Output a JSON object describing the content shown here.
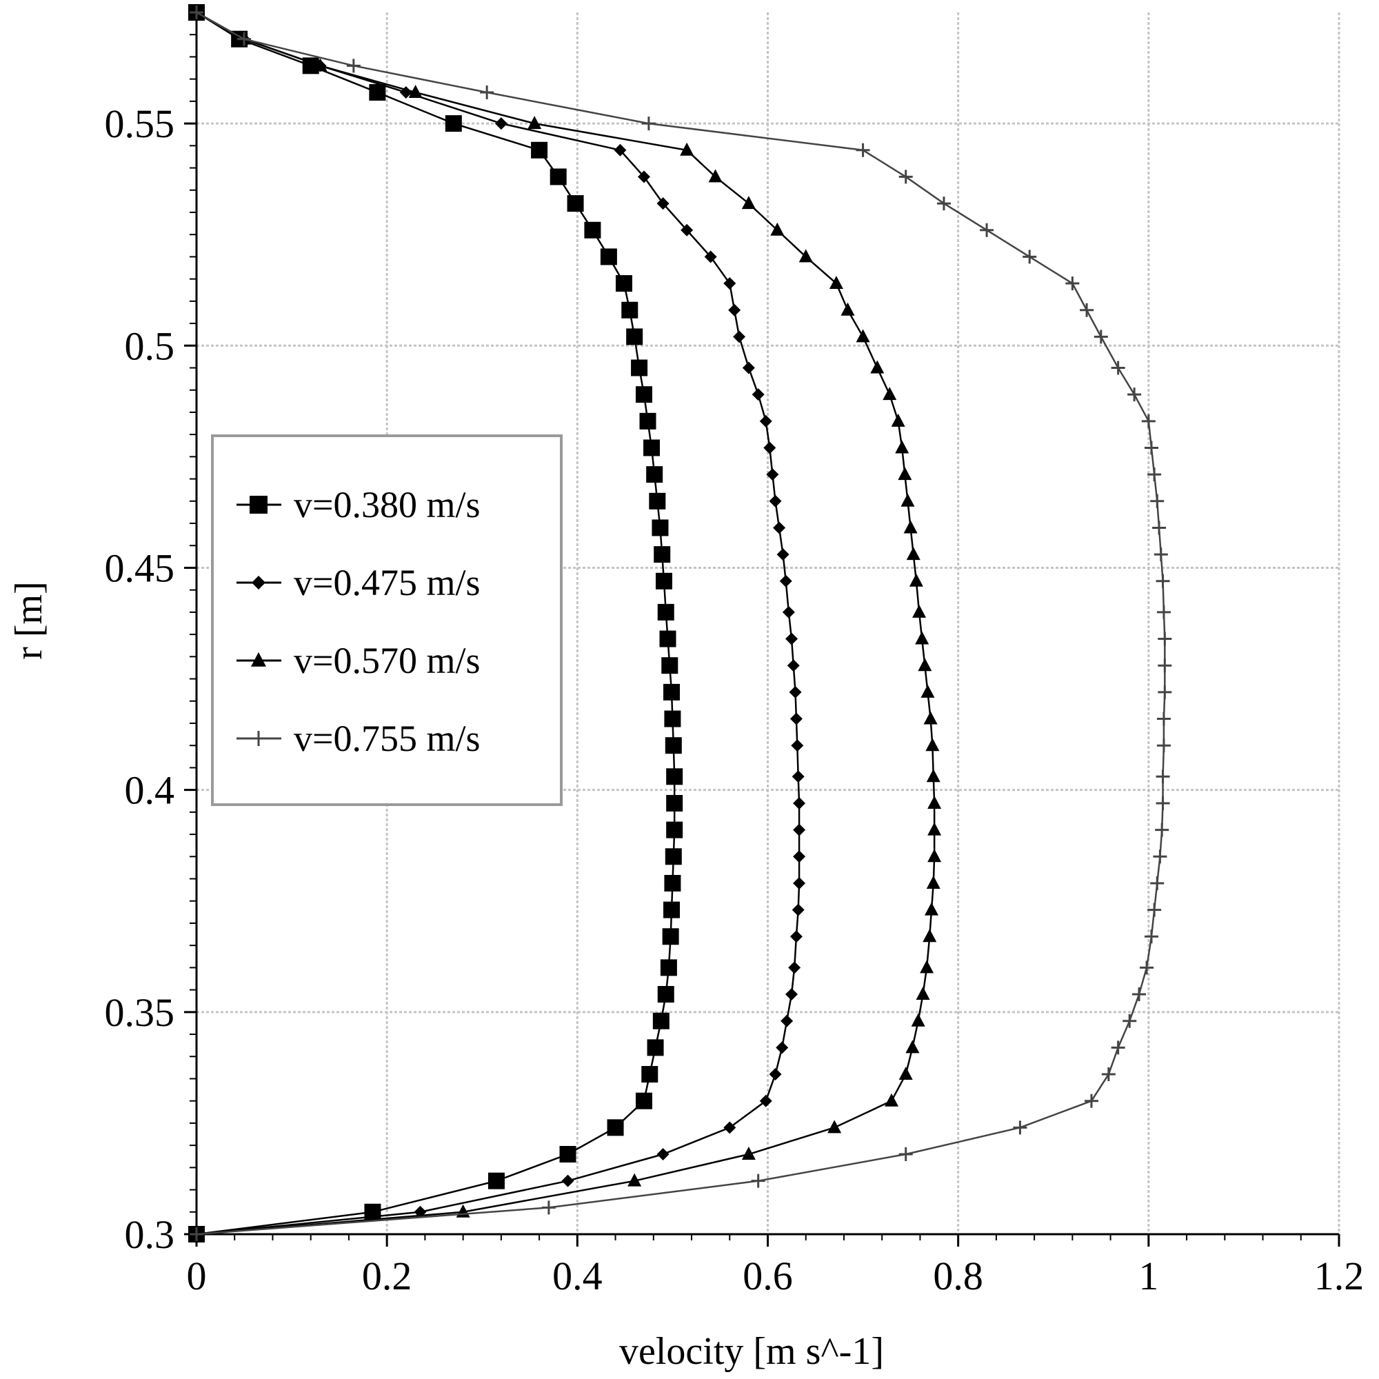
{
  "chart_data": {
    "type": "line",
    "title": "",
    "xlabel": "velocity [m s^-1]",
    "ylabel": "r [m]",
    "xlim": [
      0,
      1.2
    ],
    "ylim": [
      0.3,
      0.575
    ],
    "xticks": [
      "0",
      "0.2",
      "0.4",
      "0.6",
      "0.8",
      "1",
      "1.2"
    ],
    "yticks": [
      "0.3",
      "0.35",
      "0.4",
      "0.45",
      "0.5",
      "0.55"
    ],
    "grid": true,
    "legend_position": "left-center",
    "colors": {
      "series_dark": "#000000",
      "series_light": "#444444",
      "grid": "#c4c4c4"
    },
    "series": [
      {
        "name": "v=0.380 m/s",
        "marker": "square",
        "points": [
          [
            0.0,
            0.3
          ],
          [
            0.185,
            0.305
          ],
          [
            0.315,
            0.312
          ],
          [
            0.39,
            0.318
          ],
          [
            0.44,
            0.324
          ],
          [
            0.47,
            0.33
          ],
          [
            0.476,
            0.336
          ],
          [
            0.482,
            0.342
          ],
          [
            0.488,
            0.348
          ],
          [
            0.493,
            0.354
          ],
          [
            0.496,
            0.36
          ],
          [
            0.498,
            0.367
          ],
          [
            0.499,
            0.373
          ],
          [
            0.5,
            0.379
          ],
          [
            0.501,
            0.385
          ],
          [
            0.502,
            0.391
          ],
          [
            0.502,
            0.397
          ],
          [
            0.502,
            0.403
          ],
          [
            0.501,
            0.41
          ],
          [
            0.5,
            0.416
          ],
          [
            0.499,
            0.422
          ],
          [
            0.497,
            0.428
          ],
          [
            0.495,
            0.434
          ],
          [
            0.493,
            0.44
          ],
          [
            0.491,
            0.447
          ],
          [
            0.489,
            0.453
          ],
          [
            0.487,
            0.459
          ],
          [
            0.484,
            0.465
          ],
          [
            0.481,
            0.471
          ],
          [
            0.478,
            0.477
          ],
          [
            0.474,
            0.483
          ],
          [
            0.47,
            0.489
          ],
          [
            0.465,
            0.495
          ],
          [
            0.46,
            0.502
          ],
          [
            0.455,
            0.508
          ],
          [
            0.449,
            0.514
          ],
          [
            0.433,
            0.52
          ],
          [
            0.416,
            0.526
          ],
          [
            0.398,
            0.532
          ],
          [
            0.38,
            0.538
          ],
          [
            0.36,
            0.544
          ],
          [
            0.27,
            0.55
          ],
          [
            0.19,
            0.557
          ],
          [
            0.12,
            0.563
          ],
          [
            0.045,
            0.569
          ],
          [
            0.0,
            0.575
          ]
        ]
      },
      {
        "name": "v=0.475 m/s",
        "marker": "diamond",
        "points": [
          [
            0.0,
            0.3
          ],
          [
            0.235,
            0.305
          ],
          [
            0.39,
            0.312
          ],
          [
            0.49,
            0.318
          ],
          [
            0.56,
            0.324
          ],
          [
            0.598,
            0.33
          ],
          [
            0.608,
            0.336
          ],
          [
            0.615,
            0.342
          ],
          [
            0.62,
            0.348
          ],
          [
            0.625,
            0.354
          ],
          [
            0.628,
            0.36
          ],
          [
            0.63,
            0.367
          ],
          [
            0.632,
            0.373
          ],
          [
            0.633,
            0.379
          ],
          [
            0.633,
            0.385
          ],
          [
            0.633,
            0.391
          ],
          [
            0.633,
            0.397
          ],
          [
            0.632,
            0.403
          ],
          [
            0.631,
            0.41
          ],
          [
            0.63,
            0.416
          ],
          [
            0.629,
            0.422
          ],
          [
            0.627,
            0.428
          ],
          [
            0.625,
            0.434
          ],
          [
            0.622,
            0.44
          ],
          [
            0.619,
            0.447
          ],
          [
            0.616,
            0.453
          ],
          [
            0.612,
            0.459
          ],
          [
            0.608,
            0.465
          ],
          [
            0.605,
            0.471
          ],
          [
            0.602,
            0.477
          ],
          [
            0.598,
            0.483
          ],
          [
            0.59,
            0.489
          ],
          [
            0.58,
            0.495
          ],
          [
            0.57,
            0.502
          ],
          [
            0.565,
            0.508
          ],
          [
            0.56,
            0.514
          ],
          [
            0.54,
            0.52
          ],
          [
            0.515,
            0.526
          ],
          [
            0.49,
            0.532
          ],
          [
            0.47,
            0.538
          ],
          [
            0.445,
            0.544
          ],
          [
            0.32,
            0.55
          ],
          [
            0.22,
            0.557
          ],
          [
            0.13,
            0.563
          ],
          [
            0.05,
            0.569
          ],
          [
            0.0,
            0.575
          ]
        ]
      },
      {
        "name": "v=0.570 m/s",
        "marker": "triangle",
        "points": [
          [
            0.0,
            0.3
          ],
          [
            0.28,
            0.305
          ],
          [
            0.46,
            0.312
          ],
          [
            0.58,
            0.318
          ],
          [
            0.67,
            0.324
          ],
          [
            0.73,
            0.33
          ],
          [
            0.745,
            0.336
          ],
          [
            0.752,
            0.342
          ],
          [
            0.758,
            0.348
          ],
          [
            0.763,
            0.354
          ],
          [
            0.767,
            0.36
          ],
          [
            0.77,
            0.367
          ],
          [
            0.772,
            0.373
          ],
          [
            0.774,
            0.379
          ],
          [
            0.775,
            0.385
          ],
          [
            0.775,
            0.391
          ],
          [
            0.775,
            0.397
          ],
          [
            0.774,
            0.403
          ],
          [
            0.773,
            0.41
          ],
          [
            0.771,
            0.416
          ],
          [
            0.768,
            0.422
          ],
          [
            0.765,
            0.428
          ],
          [
            0.762,
            0.434
          ],
          [
            0.759,
            0.44
          ],
          [
            0.756,
            0.447
          ],
          [
            0.753,
            0.453
          ],
          [
            0.75,
            0.459
          ],
          [
            0.747,
            0.465
          ],
          [
            0.744,
            0.471
          ],
          [
            0.741,
            0.477
          ],
          [
            0.737,
            0.483
          ],
          [
            0.728,
            0.489
          ],
          [
            0.715,
            0.495
          ],
          [
            0.7,
            0.502
          ],
          [
            0.684,
            0.508
          ],
          [
            0.672,
            0.514
          ],
          [
            0.64,
            0.52
          ],
          [
            0.61,
            0.526
          ],
          [
            0.58,
            0.532
          ],
          [
            0.545,
            0.538
          ],
          [
            0.515,
            0.544
          ],
          [
            0.355,
            0.55
          ],
          [
            0.23,
            0.557
          ],
          [
            0.13,
            0.563
          ],
          [
            0.05,
            0.569
          ],
          [
            0.0,
            0.575
          ]
        ]
      },
      {
        "name": "v=0.755 m/s",
        "marker": "plus",
        "points": [
          [
            0.0,
            0.3
          ],
          [
            0.37,
            0.306
          ],
          [
            0.59,
            0.312
          ],
          [
            0.745,
            0.318
          ],
          [
            0.865,
            0.324
          ],
          [
            0.94,
            0.33
          ],
          [
            0.958,
            0.336
          ],
          [
            0.968,
            0.342
          ],
          [
            0.98,
            0.348
          ],
          [
            0.99,
            0.354
          ],
          [
            0.998,
            0.36
          ],
          [
            1.003,
            0.367
          ],
          [
            1.006,
            0.373
          ],
          [
            1.009,
            0.379
          ],
          [
            1.012,
            0.385
          ],
          [
            1.014,
            0.391
          ],
          [
            1.015,
            0.397
          ],
          [
            1.015,
            0.403
          ],
          [
            1.016,
            0.41
          ],
          [
            1.016,
            0.416
          ],
          [
            1.017,
            0.422
          ],
          [
            1.017,
            0.428
          ],
          [
            1.017,
            0.434
          ],
          [
            1.016,
            0.44
          ],
          [
            1.015,
            0.447
          ],
          [
            1.013,
            0.453
          ],
          [
            1.011,
            0.459
          ],
          [
            1.009,
            0.465
          ],
          [
            1.006,
            0.471
          ],
          [
            1.003,
            0.477
          ],
          [
            1.0,
            0.483
          ],
          [
            0.985,
            0.489
          ],
          [
            0.968,
            0.495
          ],
          [
            0.95,
            0.502
          ],
          [
            0.935,
            0.508
          ],
          [
            0.92,
            0.514
          ],
          [
            0.875,
            0.52
          ],
          [
            0.83,
            0.526
          ],
          [
            0.785,
            0.532
          ],
          [
            0.745,
            0.538
          ],
          [
            0.7,
            0.544
          ],
          [
            0.475,
            0.55
          ],
          [
            0.305,
            0.557
          ],
          [
            0.165,
            0.563
          ],
          [
            0.05,
            0.569
          ],
          [
            0.0,
            0.575
          ]
        ]
      }
    ]
  }
}
